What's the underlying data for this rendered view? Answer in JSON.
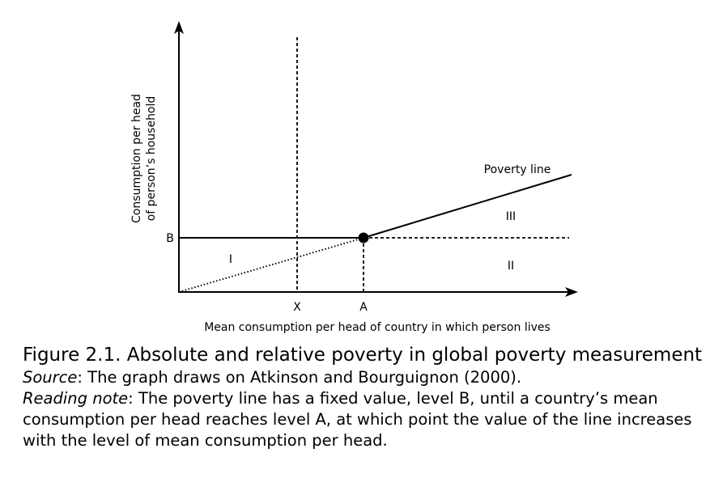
{
  "diagram": {
    "y_axis_label_line1": "Consumption per head",
    "y_axis_label_line2": "of person’s household",
    "x_axis_label": "Mean consumption per head of country in which person lives",
    "tick_b": "B",
    "tick_x": "X",
    "tick_a": "A",
    "poverty_line_label": "Poverty line",
    "region_1": "I",
    "region_2": "II",
    "region_3": "III"
  },
  "caption": {
    "title": "Figure 2.1. Absolute and relative poverty in global poverty measurement",
    "source_label": "Source",
    "source_text": ": The graph draws on Atkinson and Bourguignon (2000).",
    "note_label": "Reading note",
    "note_text": ": The poverty line has a fixed value, level B, until a country’s mean consumption per head reaches level A, at which point the value of the line increases with the level of mean consumption per head."
  }
}
